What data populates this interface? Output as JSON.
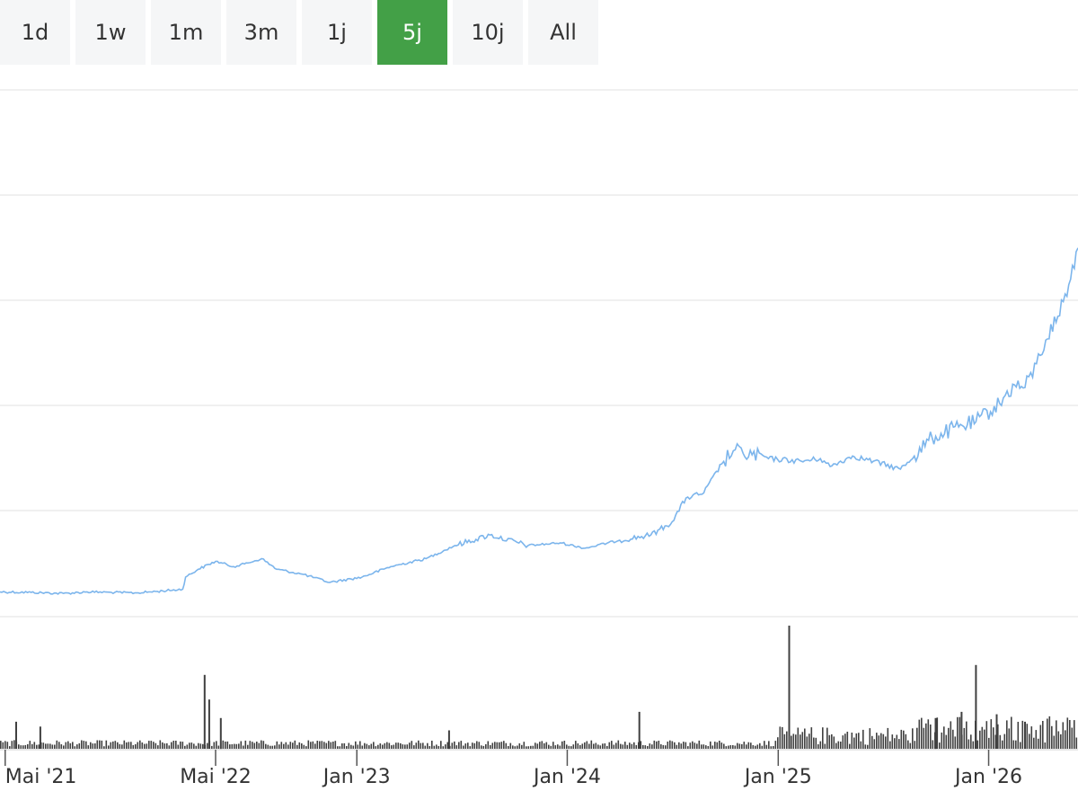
{
  "range_selector": {
    "buttons": [
      {
        "label": "1d",
        "active": false
      },
      {
        "label": "1w",
        "active": false
      },
      {
        "label": "1m",
        "active": false
      },
      {
        "label": "3m",
        "active": false
      },
      {
        "label": "1j",
        "active": false
      },
      {
        "label": "5j",
        "active": true
      },
      {
        "label": "10j",
        "active": false
      },
      {
        "label": "All",
        "active": false
      }
    ]
  },
  "colors": {
    "accent": "#43a047",
    "line": "#7cb5ec",
    "volume": "#404040",
    "grid": "#e0e0e0",
    "button_bg": "#f5f6f7"
  },
  "chart_data": {
    "type": "line",
    "title": "",
    "xlabel": "",
    "ylabel": "",
    "x_range": [
      "2021-04-22",
      "2026-06-05"
    ],
    "grid": true,
    "y_axis_labels_shown": false,
    "tick_labels": [
      {
        "date": "2021-05-01",
        "label": "Mai '21"
      },
      {
        "date": "2022-05-01",
        "label": "Mai '22"
      },
      {
        "date": "2023-01-01",
        "label": "Jan '23"
      },
      {
        "date": "2024-01-01",
        "label": "Jan '24"
      },
      {
        "date": "2025-01-01",
        "label": "Jan '25"
      },
      {
        "date": "2026-01-01",
        "label": "Jan '26"
      }
    ],
    "price_axis_note": "relative units (no price scale printed)",
    "price_range": [
      0,
      100
    ],
    "price_series": {
      "name": "",
      "points": [
        [
          "2021-04-22",
          4.7
        ],
        [
          "2021-06-15",
          4.6
        ],
        [
          "2021-08-10",
          4.4
        ],
        [
          "2021-09-20",
          4.7
        ],
        [
          "2021-11-01",
          4.6
        ],
        [
          "2021-12-15",
          4.5
        ],
        [
          "2022-01-20",
          4.8
        ],
        [
          "2022-03-05",
          5.2
        ],
        [
          "2022-03-10",
          7.5
        ],
        [
          "2022-04-01",
          9.0
        ],
        [
          "2022-05-01",
          10.5
        ],
        [
          "2022-06-01",
          9.5
        ],
        [
          "2022-06-20",
          10.0
        ],
        [
          "2022-07-20",
          11.0
        ],
        [
          "2022-08-15",
          9.0
        ],
        [
          "2022-10-01",
          8.0
        ],
        [
          "2022-11-15",
          6.5
        ],
        [
          "2023-01-10",
          7.5
        ],
        [
          "2023-03-01",
          9.5
        ],
        [
          "2023-05-01",
          11.0
        ],
        [
          "2023-06-20",
          13.5
        ],
        [
          "2023-08-20",
          15.5
        ],
        [
          "2023-10-25",
          13.5
        ],
        [
          "2023-12-20",
          14.0
        ],
        [
          "2024-02-01",
          13.0
        ],
        [
          "2024-04-01",
          14.5
        ],
        [
          "2024-05-25",
          15.5
        ],
        [
          "2024-07-01",
          18.0
        ],
        [
          "2024-07-25",
          22.5
        ],
        [
          "2024-08-25",
          23.5
        ],
        [
          "2024-09-25",
          29.0
        ],
        [
          "2024-10-15",
          31.5
        ],
        [
          "2024-11-01",
          31.0
        ],
        [
          "2024-12-15",
          30.0
        ],
        [
          "2025-02-10",
          29.5
        ],
        [
          "2025-03-15",
          30.0
        ],
        [
          "2025-04-01",
          28.5
        ],
        [
          "2025-05-10",
          30.5
        ],
        [
          "2025-06-15",
          29.5
        ],
        [
          "2025-08-01",
          28.0
        ],
        [
          "2025-08-25",
          30.5
        ],
        [
          "2025-09-25",
          34.0
        ],
        [
          "2025-11-10",
          36.0
        ],
        [
          "2025-12-10",
          37.0
        ],
        [
          "2026-01-20",
          40.5
        ],
        [
          "2026-02-15",
          44.0
        ],
        [
          "2026-03-05",
          43.5
        ],
        [
          "2026-03-25",
          48.0
        ],
        [
          "2026-04-10",
          52.5
        ],
        [
          "2026-05-01",
          57.0
        ],
        [
          "2026-05-20",
          63.0
        ],
        [
          "2026-06-05",
          70.0
        ]
      ]
    },
    "volume_series": {
      "name": "",
      "range": [
        0,
        100
      ],
      "spikes": [
        [
          "2021-05-20",
          22
        ],
        [
          "2021-07-01",
          18
        ],
        [
          "2022-04-12",
          60
        ],
        [
          "2022-04-20",
          40
        ],
        [
          "2022-05-10",
          25
        ],
        [
          "2023-06-10",
          15
        ],
        [
          "2024-05-05",
          30
        ],
        [
          "2025-01-20",
          100
        ],
        [
          "2025-10-01",
          25
        ],
        [
          "2025-11-15",
          30
        ],
        [
          "2025-12-10",
          68
        ],
        [
          "2026-01-15",
          28
        ],
        [
          "2026-03-05",
          22
        ]
      ]
    }
  }
}
